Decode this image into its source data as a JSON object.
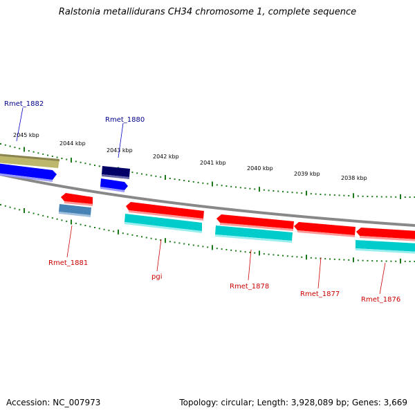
{
  "title": "Ralstonia metallidurans CH34 chromosome 1, complete sequence",
  "footer": {
    "accession": "Accession: NC_007973",
    "summary": "Topology: circular; Length: 3,928,089 bp; Genes: 3,669"
  },
  "scale_labels": [
    "2045 kbp",
    "2044 kbp",
    "2043 kbp",
    "2042 kbp",
    "2041 kbp",
    "2040 kbp",
    "2039 kbp",
    "2038 kbp"
  ],
  "gene_labels": {
    "forward_strand": [
      "Rmet_1882",
      "Rmet_1880"
    ],
    "reverse_strand": [
      "Rmet_1881",
      "pgi",
      "Rmet_1878",
      "Rmet_1877",
      "Rmet_1876"
    ]
  },
  "colors": {
    "backbone": "#888888",
    "tick_marks": "#1a7a1a",
    "forward_label": "#00008b",
    "reverse_label": "#cc0000",
    "gene_red": "#ff0000",
    "gene_blue": "#0000ff",
    "gene_navy": "#000066",
    "gene_cyan": "#00cccc",
    "gene_steelblue": "#4682b4",
    "gene_khaki": "#bdb76b"
  }
}
